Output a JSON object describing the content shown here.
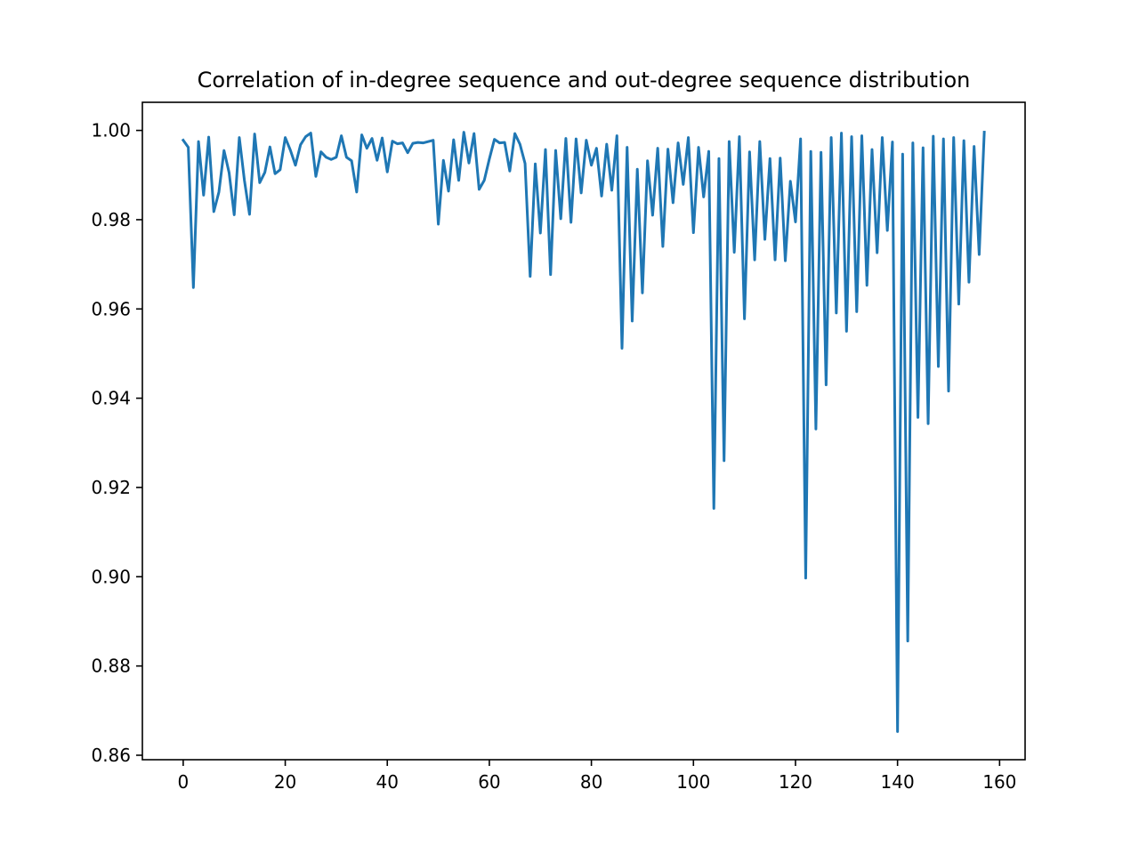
{
  "chart_data": {
    "type": "line",
    "title": "Correlation of in-degree sequence and out-degree sequence distribution",
    "xlabel": "",
    "ylabel": "",
    "xlim": [
      -8,
      165
    ],
    "ylim": [
      0.859,
      1.0063
    ],
    "xticks": [
      0,
      20,
      40,
      60,
      80,
      100,
      120,
      140,
      160
    ],
    "xtick_labels": [
      "0",
      "20",
      "40",
      "60",
      "80",
      "100",
      "120",
      "140",
      "160"
    ],
    "yticks": [
      0.86,
      0.88,
      0.9,
      0.92,
      0.94,
      0.96,
      0.98,
      1.0
    ],
    "ytick_labels": [
      "0.86",
      "0.88",
      "0.90",
      "0.92",
      "0.94",
      "0.96",
      "0.98",
      "1.00"
    ],
    "grid": false,
    "line_color": "#1f77b4",
    "series": [
      {
        "x": [
          0,
          1,
          2,
          3,
          4,
          5,
          6,
          7,
          8,
          9,
          10,
          11,
          12,
          13,
          14,
          15,
          16,
          17,
          18,
          19,
          20,
          21,
          22,
          23,
          24,
          25,
          26,
          27,
          28,
          29,
          30,
          31,
          32,
          33,
          34,
          35,
          36,
          37,
          38,
          39,
          40,
          41,
          42,
          43,
          44,
          45,
          46,
          47,
          48,
          49,
          50,
          51,
          52,
          53,
          54,
          55,
          56,
          57,
          58,
          59,
          60,
          61,
          62,
          63,
          64,
          65,
          66,
          67,
          68,
          69,
          70,
          71,
          72,
          73,
          74,
          75,
          76,
          77,
          78,
          79,
          80,
          81,
          82,
          83,
          84,
          85,
          86,
          87,
          88,
          89,
          90,
          91,
          92,
          93,
          94,
          95,
          96,
          97,
          98,
          99,
          100,
          101,
          102,
          103,
          104,
          105,
          106,
          107,
          108,
          109,
          110,
          111,
          112,
          113,
          114,
          115,
          116,
          117,
          118,
          119,
          120,
          121,
          122,
          123,
          124,
          125,
          126,
          127,
          128,
          129,
          130,
          131,
          132,
          133,
          134,
          135,
          136,
          137,
          138,
          139,
          140,
          141,
          142,
          143,
          144,
          145,
          146,
          147,
          148,
          149,
          150,
          151,
          152,
          153,
          154,
          155,
          156,
          157
        ],
        "values": [
          0.9978,
          0.9962,
          0.9648,
          0.9975,
          0.9855,
          0.9985,
          0.9818,
          0.9862,
          0.9955,
          0.9905,
          0.9811,
          0.9984,
          0.9888,
          0.9812,
          0.9992,
          0.9883,
          0.9906,
          0.9963,
          0.9903,
          0.9912,
          0.9984,
          0.9956,
          0.9922,
          0.9968,
          0.9986,
          0.9994,
          0.9897,
          0.9952,
          0.994,
          0.9935,
          0.994,
          0.9988,
          0.994,
          0.9932,
          0.9862,
          0.999,
          0.996,
          0.9982,
          0.9933,
          0.9983,
          0.9907,
          0.9976,
          0.997,
          0.9972,
          0.995,
          0.9971,
          0.9973,
          0.9972,
          0.9975,
          0.9978,
          0.979,
          0.9933,
          0.9864,
          0.9979,
          0.9888,
          0.9996,
          0.9927,
          0.9993,
          0.9868,
          0.9888,
          0.9936,
          0.998,
          0.9972,
          0.9973,
          0.9909,
          0.9993,
          0.9969,
          0.9926,
          0.9673,
          0.9925,
          0.977,
          0.9957,
          0.9677,
          0.9955,
          0.9802,
          0.9982,
          0.9794,
          0.9981,
          0.986,
          0.9978,
          0.9922,
          0.996,
          0.9853,
          0.9969,
          0.9866,
          0.9988,
          0.9512,
          0.9962,
          0.9573,
          0.9913,
          0.9636,
          0.9932,
          0.981,
          0.996,
          0.974,
          0.9958,
          0.9838,
          0.9972,
          0.9879,
          0.9984,
          0.9771,
          0.9962,
          0.9851,
          0.9953,
          0.9153,
          0.9937,
          0.926,
          0.9975,
          0.9727,
          0.9986,
          0.9578,
          0.9952,
          0.971,
          0.9975,
          0.9756,
          0.9937,
          0.971,
          0.9938,
          0.9708,
          0.9886,
          0.9795,
          0.9981,
          0.8997,
          0.9953,
          0.9331,
          0.9951,
          0.943,
          0.9984,
          0.9591,
          0.9994,
          0.955,
          0.9986,
          0.9594,
          0.9988,
          0.9653,
          0.9957,
          0.9726,
          0.9984,
          0.9776,
          0.9974,
          0.8653,
          0.9947,
          0.8856,
          0.9972,
          0.9357,
          0.9961,
          0.9343,
          0.9987,
          0.9471,
          0.9981,
          0.9416,
          0.9984,
          0.9611,
          0.9977,
          0.966,
          0.9964,
          0.9722,
          0.9996
        ]
      }
    ]
  }
}
